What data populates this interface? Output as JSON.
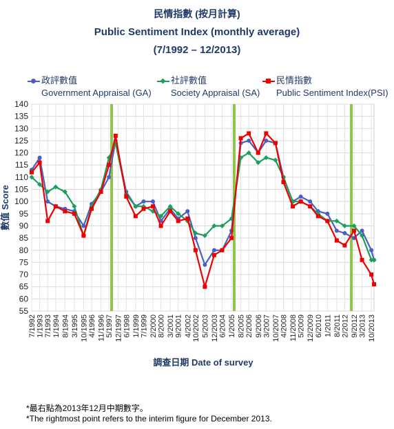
{
  "titles": {
    "line1": "民情指數 (按月計算)",
    "line2": "Public Sentiment Index (monthly average)",
    "line3": "(7/1992 – 12/2013)"
  },
  "legend": [
    {
      "zh": "政評數值",
      "en": "Government Appraisal (GA)",
      "color": "#4a5fc1",
      "marker": "circle"
    },
    {
      "zh": "社評數值",
      "en": "Society Appraisal (SA)",
      "color": "#1d9e5a",
      "marker": "diamond"
    },
    {
      "zh": "民情指數",
      "en": "Public Sentiment Index(PSI)",
      "color": "#ee0000",
      "marker": "square"
    }
  ],
  "footnotes": {
    "zh": "*最右點為2013年12月中期數字。",
    "en": "*The rightmost point refers to the interim figure for December 2013."
  },
  "chart_data": {
    "type": "line",
    "ylabel": "數值 Score",
    "xlabel": "調查日期 Date of survey",
    "ylim": [
      55,
      140
    ],
    "ytick_step": 5,
    "grid": true,
    "x_range": [
      "7/1992",
      "12/2013"
    ],
    "x_ticks": [
      "7/1992",
      "1/1993",
      "7/1993",
      "1/1994",
      "8/1994",
      "3/1995",
      "10/1995",
      "4/1996",
      "11/1996",
      "5/1997",
      "12/1997",
      "6/1998",
      "1/1999",
      "7/1999",
      "2/2000",
      "8/2000",
      "3/2001",
      "9/2001",
      "4/2002",
      "10/2002",
      "5/2003",
      "12/2003",
      "6/2004",
      "1/2005",
      "8/2005",
      "2/2006",
      "9/2006",
      "3/2007",
      "10/2007",
      "4/2008",
      "11/2008",
      "5/2009",
      "12/2009",
      "6/2010",
      "1/2011",
      "8/2011",
      "2/2012",
      "9/2012",
      "3/2013",
      "10/2013"
    ],
    "vertical_markers": [
      "7/1997",
      "3/2005",
      "7/2012"
    ],
    "marker_color": "#8fc34a",
    "series": [
      {
        "name": "Government Appraisal (GA)",
        "color": "#4a5fc1",
        "points": [
          [
            "7/1992",
            113
          ],
          [
            "1/1993",
            118
          ],
          [
            "7/1993",
            100
          ],
          [
            "1/1994",
            98
          ],
          [
            "8/1994",
            97
          ],
          [
            "3/1995",
            96
          ],
          [
            "10/1995",
            90
          ],
          [
            "4/1996",
            99
          ],
          [
            "11/1996",
            104
          ],
          [
            "5/1997",
            110
          ],
          [
            "10/1997",
            125
          ],
          [
            "6/1998",
            104
          ],
          [
            "1/1999",
            98
          ],
          [
            "7/1999",
            100
          ],
          [
            "2/2000",
            100
          ],
          [
            "8/2000",
            92
          ],
          [
            "3/2001",
            97
          ],
          [
            "9/2001",
            93
          ],
          [
            "4/2002",
            96
          ],
          [
            "10/2002",
            85
          ],
          [
            "5/2003",
            74
          ],
          [
            "12/2003",
            80
          ],
          [
            "6/2004",
            80
          ],
          [
            "1/2005",
            88
          ],
          [
            "8/2005",
            124
          ],
          [
            "2/2006",
            125
          ],
          [
            "9/2006",
            120
          ],
          [
            "3/2007",
            125
          ],
          [
            "10/2007",
            124
          ],
          [
            "4/2008",
            110
          ],
          [
            "11/2008",
            100
          ],
          [
            "5/2009",
            102
          ],
          [
            "12/2009",
            100
          ],
          [
            "6/2010",
            96
          ],
          [
            "1/2011",
            95
          ],
          [
            "8/2011",
            88
          ],
          [
            "2/2012",
            87
          ],
          [
            "9/2012",
            85
          ],
          [
            "3/2013",
            88
          ],
          [
            "10/2013",
            80
          ],
          [
            "12/2013",
            76
          ]
        ]
      },
      {
        "name": "Society Appraisal (SA)",
        "color": "#1d9e5a",
        "points": [
          [
            "7/1992",
            110
          ],
          [
            "1/1993",
            107
          ],
          [
            "7/1993",
            104
          ],
          [
            "1/1994",
            106
          ],
          [
            "8/1994",
            104
          ],
          [
            "3/1995",
            98
          ],
          [
            "10/1995",
            86
          ],
          [
            "4/1996",
            98
          ],
          [
            "11/1996",
            105
          ],
          [
            "5/1997",
            118
          ],
          [
            "10/1997",
            124
          ],
          [
            "6/1998",
            103
          ],
          [
            "1/1999",
            98
          ],
          [
            "7/1999",
            98
          ],
          [
            "2/2000",
            96
          ],
          [
            "8/2000",
            94
          ],
          [
            "3/2001",
            98
          ],
          [
            "9/2001",
            95
          ],
          [
            "4/2002",
            92
          ],
          [
            "10/2002",
            87
          ],
          [
            "5/2003",
            86
          ],
          [
            "12/2003",
            90
          ],
          [
            "6/2004",
            90
          ],
          [
            "1/2005",
            93
          ],
          [
            "8/2005",
            118
          ],
          [
            "2/2006",
            120
          ],
          [
            "9/2006",
            116
          ],
          [
            "3/2007",
            118
          ],
          [
            "10/2007",
            117
          ],
          [
            "4/2008",
            110
          ],
          [
            "11/2008",
            100
          ],
          [
            "5/2009",
            100
          ],
          [
            "12/2009",
            98
          ],
          [
            "6/2010",
            95
          ],
          [
            "1/2011",
            92
          ],
          [
            "8/2011",
            92
          ],
          [
            "2/2012",
            90
          ],
          [
            "9/2012",
            90
          ],
          [
            "3/2013",
            86
          ],
          [
            "10/2013",
            76
          ],
          [
            "12/2013",
            76
          ]
        ]
      },
      {
        "name": "Public Sentiment Index(PSI)",
        "color": "#ee0000",
        "points": [
          [
            "7/1992",
            112
          ],
          [
            "1/1993",
            116
          ],
          [
            "7/1993",
            92
          ],
          [
            "1/1994",
            98
          ],
          [
            "8/1994",
            96
          ],
          [
            "3/1995",
            95
          ],
          [
            "10/1995",
            86
          ],
          [
            "4/1996",
            97
          ],
          [
            "11/1996",
            104
          ],
          [
            "5/1997",
            115
          ],
          [
            "10/1997",
            127
          ],
          [
            "6/1998",
            102
          ],
          [
            "1/1999",
            94
          ],
          [
            "7/1999",
            97
          ],
          [
            "2/2000",
            98
          ],
          [
            "8/2000",
            90
          ],
          [
            "3/2001",
            96
          ],
          [
            "9/2001",
            92
          ],
          [
            "4/2002",
            93
          ],
          [
            "10/2002",
            80
          ],
          [
            "5/2003",
            65
          ],
          [
            "12/2003",
            78
          ],
          [
            "6/2004",
            80
          ],
          [
            "1/2005",
            85
          ],
          [
            "8/2005",
            126
          ],
          [
            "2/2006",
            128
          ],
          [
            "9/2006",
            120
          ],
          [
            "3/2007",
            128
          ],
          [
            "10/2007",
            124
          ],
          [
            "4/2008",
            108
          ],
          [
            "11/2008",
            98
          ],
          [
            "5/2009",
            100
          ],
          [
            "12/2009",
            98
          ],
          [
            "6/2010",
            94
          ],
          [
            "1/2011",
            92
          ],
          [
            "8/2011",
            84
          ],
          [
            "2/2012",
            82
          ],
          [
            "9/2012",
            88
          ],
          [
            "3/2013",
            76
          ],
          [
            "10/2013",
            70
          ],
          [
            "12/2013",
            66
          ]
        ]
      }
    ]
  }
}
